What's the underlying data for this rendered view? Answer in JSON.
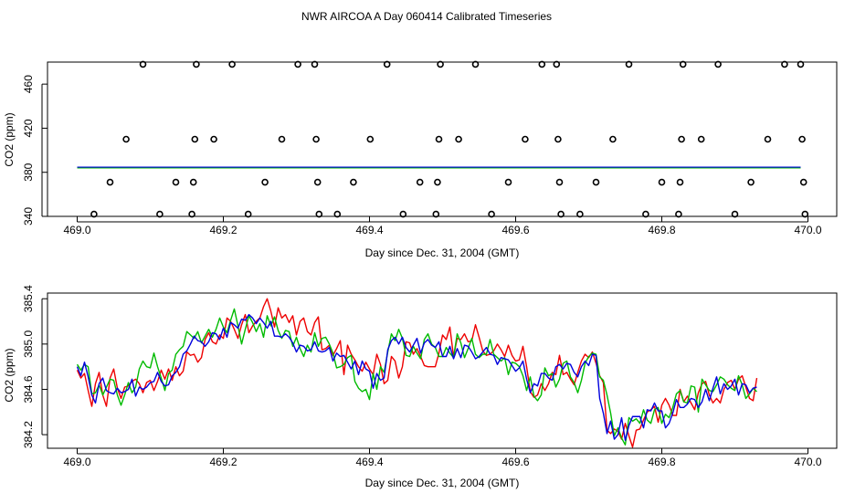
{
  "title": "NWR AIRCOA A  Day 060414  Calibrated Timeseries",
  "colors": {
    "red": "#ee0000",
    "green": "#00bb00",
    "blue": "#0000dd",
    "axis": "#000000"
  },
  "chart_data": [
    {
      "type": "scatter",
      "xlabel": "Day since Dec. 31, 2004 (GMT)",
      "ylabel": "CO2 (ppm)",
      "xlim": [
        469.0,
        470.0
      ],
      "ylim": [
        340,
        480
      ],
      "xticks": [
        "469.0",
        "469.2",
        "469.4",
        "469.6",
        "469.8",
        "470.0"
      ],
      "yticks": [
        "340",
        "380",
        "420",
        "460"
      ],
      "points": [
        {
          "x": 469.023,
          "y": 342
        },
        {
          "x": 469.045,
          "y": 371
        },
        {
          "x": 469.067,
          "y": 410
        },
        {
          "x": 469.09,
          "y": 478
        },
        {
          "x": 469.113,
          "y": 342
        },
        {
          "x": 469.135,
          "y": 371
        },
        {
          "x": 469.157,
          "y": 342
        },
        {
          "x": 469.159,
          "y": 371
        },
        {
          "x": 469.161,
          "y": 410
        },
        {
          "x": 469.163,
          "y": 478
        },
        {
          "x": 469.187,
          "y": 410
        },
        {
          "x": 469.212,
          "y": 478
        },
        {
          "x": 469.234,
          "y": 342
        },
        {
          "x": 469.257,
          "y": 371
        },
        {
          "x": 469.28,
          "y": 410
        },
        {
          "x": 469.302,
          "y": 478
        },
        {
          "x": 469.325,
          "y": 478
        },
        {
          "x": 469.327,
          "y": 410
        },
        {
          "x": 469.329,
          "y": 371
        },
        {
          "x": 469.331,
          "y": 342
        },
        {
          "x": 469.356,
          "y": 342
        },
        {
          "x": 469.378,
          "y": 371
        },
        {
          "x": 469.401,
          "y": 410
        },
        {
          "x": 469.424,
          "y": 478
        },
        {
          "x": 469.446,
          "y": 342
        },
        {
          "x": 469.469,
          "y": 371
        },
        {
          "x": 469.491,
          "y": 342
        },
        {
          "x": 469.493,
          "y": 371
        },
        {
          "x": 469.495,
          "y": 410
        },
        {
          "x": 469.497,
          "y": 478
        },
        {
          "x": 469.522,
          "y": 410
        },
        {
          "x": 469.545,
          "y": 478
        },
        {
          "x": 469.567,
          "y": 342
        },
        {
          "x": 469.59,
          "y": 371
        },
        {
          "x": 469.613,
          "y": 410
        },
        {
          "x": 469.636,
          "y": 478
        },
        {
          "x": 469.656,
          "y": 478
        },
        {
          "x": 469.658,
          "y": 410
        },
        {
          "x": 469.66,
          "y": 371
        },
        {
          "x": 469.662,
          "y": 342
        },
        {
          "x": 469.688,
          "y": 342
        },
        {
          "x": 469.71,
          "y": 371
        },
        {
          "x": 469.733,
          "y": 410
        },
        {
          "x": 469.755,
          "y": 478
        },
        {
          "x": 469.778,
          "y": 342
        },
        {
          "x": 469.8,
          "y": 371
        },
        {
          "x": 469.823,
          "y": 342
        },
        {
          "x": 469.825,
          "y": 371
        },
        {
          "x": 469.827,
          "y": 410
        },
        {
          "x": 469.829,
          "y": 478
        },
        {
          "x": 469.854,
          "y": 410
        },
        {
          "x": 469.877,
          "y": 478
        },
        {
          "x": 469.9,
          "y": 342
        },
        {
          "x": 469.922,
          "y": 371
        },
        {
          "x": 469.945,
          "y": 410
        },
        {
          "x": 469.968,
          "y": 478
        },
        {
          "x": 469.99,
          "y": 478
        },
        {
          "x": 469.992,
          "y": 410
        },
        {
          "x": 469.994,
          "y": 371
        },
        {
          "x": 469.996,
          "y": 342
        }
      ],
      "flat_line": {
        "x_start": 469.0,
        "x_end": 469.99,
        "y": 384.7
      }
    },
    {
      "type": "line",
      "xlabel": "Day since Dec. 31, 2004 (GMT)",
      "ylabel": "CO2 (ppm)",
      "xlim": [
        469.0,
        470.0
      ],
      "ylim": [
        384.08,
        385.45
      ],
      "xticks": [
        "469.0",
        "469.2",
        "469.4",
        "469.6",
        "469.8",
        "470.0"
      ],
      "yticks": [
        "384.2",
        "384.6",
        "385.0",
        "385.4"
      ],
      "x_start": 469.0,
      "x_step": 0.005,
      "series": [
        {
          "name": "red",
          "values": [
            384.77,
            384.7,
            384.74,
            384.59,
            384.45,
            384.65,
            384.75,
            384.55,
            384.45,
            384.7,
            384.78,
            384.61,
            384.52,
            384.62,
            384.63,
            384.67,
            384.69,
            384.65,
            384.57,
            384.66,
            384.68,
            384.59,
            384.67,
            384.77,
            384.69,
            384.78,
            384.68,
            384.8,
            384.72,
            384.76,
            384.93,
            384.9,
            384.91,
            384.84,
            384.88,
            385.04,
            385.1,
            385.02,
            385.0,
            385.08,
            385.05,
            385.23,
            385.2,
            385.13,
            385.05,
            385.17,
            385.26,
            385.1,
            385.16,
            385.2,
            385.23,
            385.33,
            385.4,
            385.29,
            385.15,
            385.32,
            385.23,
            385.26,
            385.19,
            385.25,
            385.08,
            385.2,
            385.23,
            385.11,
            385.08,
            385.19,
            385.24,
            384.95,
            384.96,
            384.99,
            384.9,
            384.96,
            385.03,
            384.73,
            384.99,
            384.91,
            384.86,
            384.8,
            384.76,
            384.84,
            384.78,
            384.73,
            384.91,
            384.82,
            384.65,
            384.68,
            384.89,
            384.85,
            384.7,
            384.8,
            385.02,
            385.01,
            384.91,
            384.96,
            384.89,
            384.81,
            384.8,
            384.8,
            384.8,
            384.92,
            385.08,
            385.04,
            385.15,
            384.89,
            385.05,
            385.04,
            385.09,
            385.02,
            385.03,
            385.17,
            385.06,
            384.94,
            384.9,
            384.91,
            384.94,
            385.0,
            384.95,
            384.89,
            384.99,
            384.9,
            384.85,
            384.86,
            384.98,
            384.8,
            384.58,
            384.53,
            384.55,
            384.65,
            384.59,
            384.65,
            384.75,
            384.73,
            384.9,
            384.73,
            384.75,
            384.69,
            384.64,
            384.75,
            384.85,
            384.91,
            384.88,
            384.93,
            384.83,
            384.72,
            384.66,
            384.24,
            384.21,
            384.25,
            384.23,
            384.16,
            384.3,
            384.19,
            384.09,
            384.24,
            384.25,
            384.33,
            384.4,
            384.42,
            384.45,
            384.31,
            384.46,
            384.52,
            384.46,
            384.37,
            384.37,
            384.6,
            384.49,
            384.54,
            384.48,
            384.42,
            384.57,
            384.65,
            384.67,
            384.55,
            384.48,
            384.52,
            384.48,
            384.6,
            384.66,
            384.68,
            384.6,
            384.69,
            384.72,
            384.62,
            384.52,
            384.5,
            384.7
          ]
        },
        {
          "name": "green",
          "values": [
            384.82,
            384.77,
            384.82,
            384.8,
            384.56,
            384.57,
            384.64,
            384.55,
            384.62,
            384.69,
            384.68,
            384.55,
            384.46,
            384.55,
            384.66,
            384.57,
            384.62,
            384.78,
            384.85,
            384.8,
            384.79,
            384.92,
            384.8,
            384.7,
            384.59,
            384.74,
            384.77,
            384.91,
            384.95,
            384.98,
            385.11,
            385.08,
            385.05,
            385.11,
            385.01,
            385.07,
            385.13,
            385.06,
            385.13,
            385.23,
            385.15,
            385.1,
            385.21,
            385.31,
            385.16,
            385.0,
            385.13,
            385.25,
            385.19,
            385.11,
            385.18,
            385.06,
            385.25,
            385.16,
            385.24,
            385.12,
            385.05,
            385.12,
            385.11,
            384.98,
            385.06,
            384.96,
            384.89,
            384.99,
            384.93,
            385.1,
            384.98,
            385.05,
            385.06,
            385.0,
            384.92,
            384.79,
            384.8,
            384.82,
            384.88,
            384.9,
            384.67,
            384.61,
            384.58,
            384.6,
            384.51,
            384.74,
            384.6,
            384.8,
            384.75,
            384.93,
            385.09,
            385.03,
            385.13,
            385.05,
            384.9,
            384.89,
            384.98,
            384.92,
            384.87,
            385.04,
            385.09,
            385.0,
            384.97,
            384.89,
            384.89,
            384.97,
            384.92,
            384.88,
            385.09,
            385.01,
            384.88,
            384.96,
            385.05,
            384.91,
            384.88,
            384.91,
            384.91,
            385.04,
            384.91,
            384.88,
            384.85,
            384.88,
            384.73,
            384.84,
            384.83,
            384.8,
            384.72,
            384.59,
            384.71,
            384.54,
            384.5,
            384.55,
            384.79,
            384.72,
            384.74,
            384.62,
            384.69,
            384.83,
            384.85,
            384.71,
            384.66,
            384.57,
            384.68,
            384.83,
            384.89,
            384.92,
            384.91,
            384.71,
            384.68,
            384.55,
            384.39,
            384.19,
            384.26,
            384.17,
            384.11,
            384.35,
            384.32,
            384.34,
            384.3,
            384.42,
            384.33,
            384.3,
            384.42,
            384.44,
            384.3,
            384.38,
            384.35,
            384.44,
            384.56,
            384.59,
            384.49,
            384.48,
            384.63,
            384.62,
            384.4,
            384.69,
            384.64,
            384.59,
            384.58,
            384.64,
            384.71,
            384.69,
            384.64,
            384.61,
            384.59,
            384.72,
            384.64,
            384.52,
            384.56,
            384.61,
            384.58
          ]
        },
        {
          "name": "blue",
          "values": [
            384.8,
            384.72,
            384.84,
            384.71,
            384.55,
            384.48,
            384.65,
            384.7,
            384.59,
            384.57,
            384.56,
            384.61,
            384.57,
            384.58,
            384.6,
            384.69,
            384.54,
            384.62,
            384.6,
            384.62,
            384.66,
            384.67,
            384.75,
            384.67,
            384.63,
            384.64,
            384.72,
            384.75,
            384.8,
            384.91,
            384.94,
            385.0,
            385.07,
            385.03,
            385.02,
            384.98,
            385.02,
            385.1,
            385.09,
            385.04,
            385.14,
            385.06,
            385.19,
            385.17,
            385.14,
            385.22,
            385.21,
            385.26,
            385.23,
            385.18,
            385.23,
            385.19,
            385.14,
            385.2,
            385.07,
            385.07,
            385.06,
            385.09,
            385.06,
            385.01,
            384.93,
            384.99,
            384.98,
            384.94,
            384.95,
            385.02,
            384.94,
            384.93,
            384.94,
            384.97,
            384.85,
            384.92,
            384.89,
            384.9,
            384.84,
            384.78,
            384.85,
            384.73,
            384.85,
            384.78,
            384.76,
            384.61,
            384.74,
            384.68,
            384.7,
            384.95,
            385.03,
            385.06,
            385.0,
            385.06,
            384.97,
            384.93,
            384.99,
            385.05,
            384.92,
            385.01,
            385.04,
            384.99,
            384.97,
            385.02,
            384.89,
            384.89,
            384.98,
            384.87,
            384.96,
            384.88,
            384.99,
            384.98,
            384.93,
            384.87,
            384.89,
            384.93,
            384.97,
            384.91,
            384.9,
            384.82,
            384.88,
            384.87,
            384.86,
            384.81,
            384.76,
            384.79,
            384.85,
            384.69,
            384.57,
            384.65,
            384.63,
            384.74,
            384.74,
            384.7,
            384.68,
            384.8,
            384.82,
            384.78,
            384.83,
            384.82,
            384.75,
            384.71,
            384.8,
            384.85,
            384.81,
            384.91,
            384.9,
            384.52,
            384.39,
            384.21,
            384.32,
            384.16,
            384.2,
            384.35,
            384.15,
            384.28,
            384.36,
            384.36,
            384.36,
            384.26,
            384.42,
            384.41,
            384.48,
            384.41,
            384.41,
            384.26,
            384.3,
            384.39,
            384.51,
            384.44,
            384.44,
            384.47,
            384.52,
            384.51,
            384.44,
            384.49,
            384.6,
            384.5,
            384.61,
            384.71,
            384.56,
            384.65,
            384.6,
            384.63,
            384.69,
            384.55,
            384.65,
            384.64,
            384.57,
            384.61,
            384.62
          ]
        }
      ]
    }
  ]
}
